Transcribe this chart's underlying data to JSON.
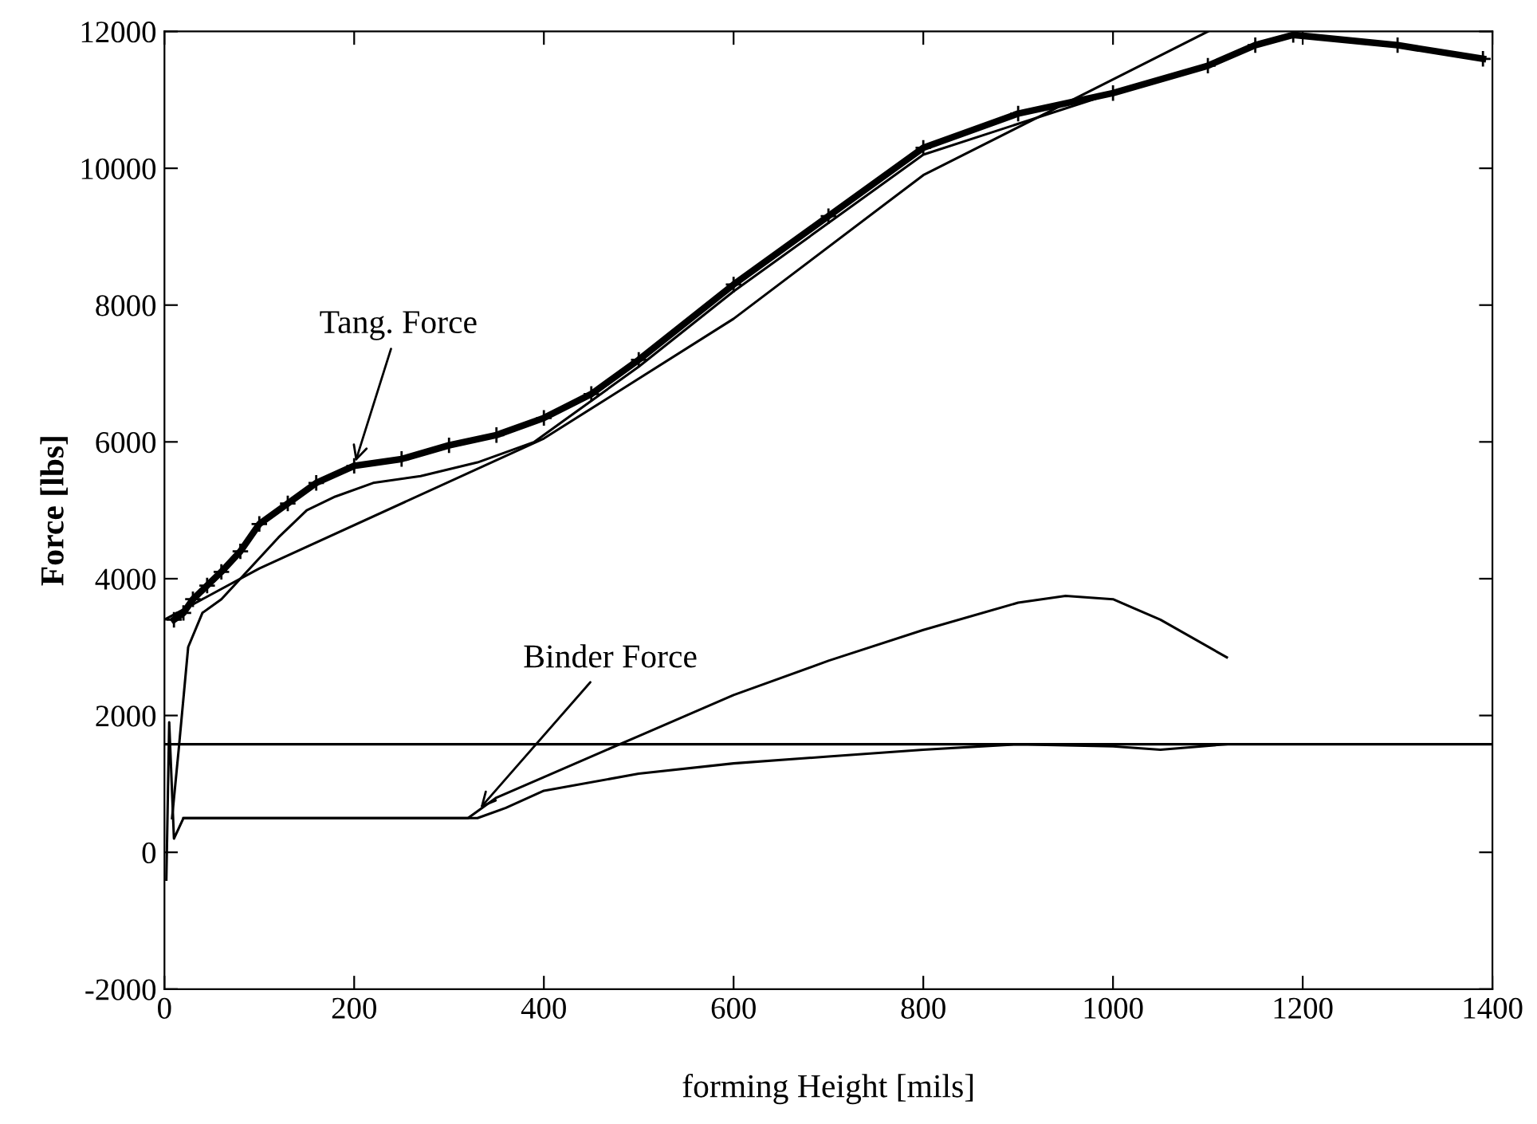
{
  "chart_data": {
    "type": "line",
    "xlabel": "forming Height [mils]",
    "ylabel": "Force [lbs]",
    "xlim": [
      0,
      1400
    ],
    "ylim": [
      -2000,
      12000
    ],
    "xticks": [
      0,
      200,
      400,
      600,
      800,
      1000,
      1200,
      1400
    ],
    "yticks": [
      -2000,
      0,
      2000,
      4000,
      6000,
      8000,
      10000,
      12000
    ],
    "grid": false,
    "legend": false,
    "series": [
      {
        "color": "#000000",
        "marker": "cross",
        "x": [
          10,
          20,
          30,
          45,
          60,
          80,
          100,
          130,
          160,
          200,
          250,
          300,
          350,
          400,
          450,
          500,
          600,
          700,
          800,
          900,
          1000,
          1100,
          1150,
          1190,
          1300,
          1390
        ],
        "values": [
          3400,
          3500,
          3700,
          3900,
          4100,
          4400,
          4800,
          5100,
          5400,
          5650,
          5750,
          5950,
          6100,
          6350,
          6700,
          7200,
          8300,
          9300,
          10300,
          10800,
          11100,
          11500,
          11800,
          11950,
          11800,
          11600
        ]
      },
      {
        "color": "#000000",
        "x": [
          8,
          15,
          25,
          40,
          60,
          80,
          100,
          120,
          150,
          180,
          220,
          270,
          330,
          390,
          420,
          500,
          600,
          800,
          1000
        ],
        "values": [
          500,
          1500,
          3000,
          3500,
          3700,
          4000,
          4300,
          4600,
          5000,
          5200,
          5400,
          5500,
          5700,
          6000,
          6300,
          7100,
          8200,
          10200,
          11100
        ]
      },
      {
        "color": "#000000",
        "x": [
          0,
          100,
          400,
          600,
          800,
          1000,
          1100
        ],
        "values": [
          3400,
          4150,
          6050,
          7800,
          9900,
          11300,
          12000
        ]
      },
      {
        "color": "#000000",
        "x": [
          2,
          5,
          10,
          20,
          100,
          200,
          320,
          350,
          400,
          500,
          600,
          700,
          800,
          900,
          950,
          1000,
          1050,
          1120
        ],
        "values": [
          -400,
          1900,
          200,
          500,
          500,
          500,
          500,
          800,
          1100,
          1700,
          2300,
          2800,
          3250,
          3650,
          3750,
          3700,
          3400,
          2850
        ]
      },
      {
        "color": "#000000",
        "x": [
          20,
          100,
          200,
          330,
          360,
          400,
          500,
          600,
          700,
          800,
          900,
          1000,
          1050,
          1120
        ],
        "values": [
          500,
          500,
          500,
          500,
          650,
          900,
          1150,
          1300,
          1400,
          1500,
          1580,
          1550,
          1500,
          1580
        ]
      }
    ],
    "ref_lines": [
      {
        "axis": "y",
        "value": 1580,
        "color": "#000000"
      }
    ],
    "annotations": [
      {
        "text": "Tang. Force",
        "x": 200,
        "y": 5650
      },
      {
        "text": "Binder Force",
        "x": 330,
        "y": 600
      }
    ]
  }
}
